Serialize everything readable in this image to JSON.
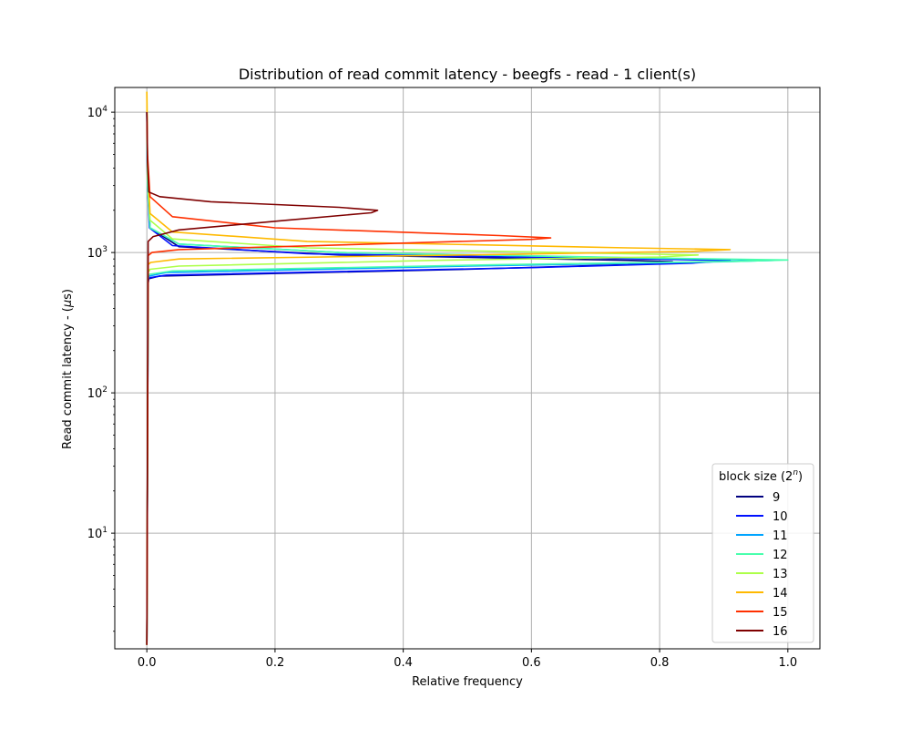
{
  "chart_data": {
    "type": "line",
    "title": "Distribution of read commit latency - beegfs - read - 1 client(s)",
    "xlabel": "Relative frequency",
    "ylabel": "Read commit latency - (μs)",
    "ylabel_prefix": "Read commit latency - (",
    "ylabel_mu": "μ",
    "ylabel_suffix": "s)",
    "yscale": "log",
    "xlim": [
      -0.05,
      1.05
    ],
    "ylim": [
      1.5,
      15000
    ],
    "xticks": [
      0.0,
      0.2,
      0.4,
      0.6,
      0.8,
      1.0
    ],
    "xtick_labels": [
      "0.0",
      "0.2",
      "0.4",
      "0.6",
      "0.8",
      "1.0"
    ],
    "yticks": [
      10,
      100,
      1000,
      10000
    ],
    "ytick_bases": [
      "10",
      "10",
      "10",
      "10"
    ],
    "ytick_exponents": [
      "1",
      "2",
      "3",
      "4"
    ],
    "grid": true,
    "legend": {
      "title": "block size (2",
      "title_exp": "n",
      "title_close": ")",
      "placement": "lower-right"
    },
    "series": [
      {
        "name": "9",
        "color": "#00007f",
        "x": [
          0,
          0.002,
          0.003,
          0.02,
          0.5,
          0.75,
          0.82,
          0.75,
          0.3,
          0.05,
          0.005,
          0.001,
          0
        ],
        "y": [
          1.6,
          600,
          650,
          680,
          760,
          820,
          860,
          880,
          960,
          1100,
          1500,
          3000,
          10000
        ]
      },
      {
        "name": "10",
        "color": "#0010ff",
        "x": [
          0,
          0.002,
          0.003,
          0.03,
          0.6,
          0.85,
          0.91,
          0.8,
          0.25,
          0.04,
          0.004,
          0.001,
          0
        ],
        "y": [
          1.6,
          620,
          660,
          690,
          780,
          840,
          875,
          895,
          980,
          1120,
          1500,
          3000,
          10000
        ]
      },
      {
        "name": "11",
        "color": "#00a4ff",
        "x": [
          0,
          0.002,
          0.004,
          0.03,
          0.5,
          0.9,
          0.98,
          0.85,
          0.3,
          0.05,
          0.005,
          0.001,
          0
        ],
        "y": [
          1.6,
          650,
          680,
          720,
          800,
          860,
          880,
          900,
          1000,
          1150,
          1500,
          3000,
          10000
        ]
      },
      {
        "name": "12",
        "color": "#49ffad",
        "x": [
          0,
          0.002,
          0.004,
          0.04,
          0.55,
          0.92,
          1.0,
          0.85,
          0.3,
          0.05,
          0.005,
          0.001,
          0
        ],
        "y": [
          1.6,
          680,
          700,
          740,
          820,
          865,
          885,
          905,
          1000,
          1150,
          1500,
          3000,
          10000
        ]
      },
      {
        "name": "13",
        "color": "#adff49",
        "x": [
          0,
          0.002,
          0.005,
          0.05,
          0.45,
          0.8,
          0.86,
          0.7,
          0.25,
          0.04,
          0.005,
          0.001,
          0
        ],
        "y": [
          1.6,
          720,
          760,
          800,
          880,
          930,
          960,
          990,
          1080,
          1250,
          1700,
          4000,
          14000
        ]
      },
      {
        "name": "14",
        "color": "#ffb900",
        "x": [
          0,
          0.002,
          0.006,
          0.05,
          0.5,
          0.85,
          0.91,
          0.75,
          0.25,
          0.04,
          0.005,
          0.001,
          0
        ],
        "y": [
          1.6,
          820,
          850,
          900,
          960,
          1020,
          1050,
          1080,
          1200,
          1400,
          1900,
          4500,
          14000
        ]
      },
      {
        "name": "15",
        "color": "#ff3000",
        "x": [
          0,
          0.002,
          0.008,
          0.05,
          0.35,
          0.6,
          0.63,
          0.55,
          0.2,
          0.04,
          0.005,
          0.001,
          0
        ],
        "y": [
          1.6,
          950,
          1000,
          1050,
          1150,
          1240,
          1270,
          1320,
          1500,
          1800,
          2500,
          5000,
          10000
        ]
      },
      {
        "name": "16",
        "color": "#7f0000",
        "x": [
          0,
          0.002,
          0.01,
          0.05,
          0.22,
          0.35,
          0.36,
          0.3,
          0.1,
          0.02,
          0.003,
          0.001,
          0
        ],
        "y": [
          1.6,
          1200,
          1300,
          1450,
          1700,
          1920,
          2000,
          2100,
          2300,
          2500,
          2700,
          4500,
          10000
        ]
      }
    ]
  }
}
